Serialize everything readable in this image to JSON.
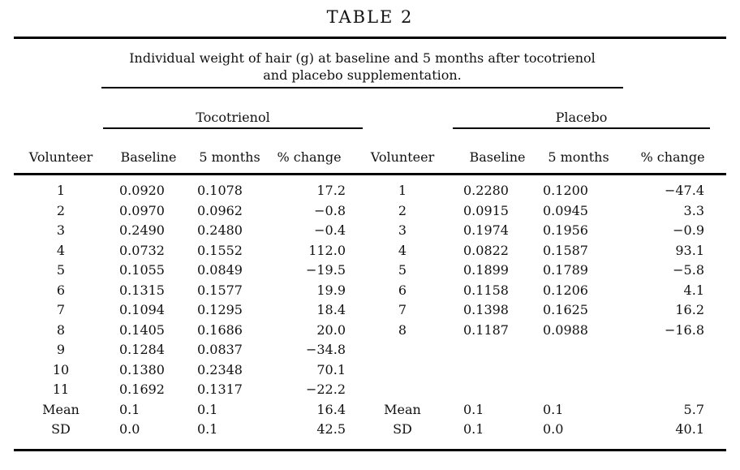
{
  "title": "TABLE 2",
  "caption": {
    "line1": "Individual weight of hair (g) at baseline and 5 months after tocotrienol",
    "line2": "and placebo supplementation."
  },
  "columns": [
    "Volunteer",
    "Baseline",
    "5 months",
    "% change",
    "Volunteer",
    "Baseline",
    "5 months",
    "% change"
  ],
  "chart_data": {
    "type": "table",
    "title": "TABLE 2",
    "caption": "Individual weight of hair (g) at baseline and 5 months after tocotrienol and placebo supplementation.",
    "groups": [
      {
        "name": "Tocotrienol",
        "columns": [
          "Volunteer",
          "Baseline",
          "5 months",
          "% change"
        ],
        "data_rows": [
          [
            "1",
            "0.0920",
            "0.1078",
            "17.2"
          ],
          [
            "2",
            "0.0970",
            "0.0962",
            "−0.8"
          ],
          [
            "3",
            "0.2490",
            "0.2480",
            "−0.4"
          ],
          [
            "4",
            "0.0732",
            "0.1552",
            "112.0"
          ],
          [
            "5",
            "0.1055",
            "0.0849",
            "−19.5"
          ],
          [
            "6",
            "0.1315",
            "0.1577",
            "19.9"
          ],
          [
            "7",
            "0.1094",
            "0.1295",
            "18.4"
          ],
          [
            "8",
            "0.1405",
            "0.1686",
            "20.0"
          ],
          [
            "9",
            "0.1284",
            "0.0837",
            "−34.8"
          ],
          [
            "10",
            "0.1380",
            "0.2348",
            "70.1"
          ],
          [
            "11",
            "0.1692",
            "0.1317",
            "−22.2"
          ]
        ],
        "summary_rows": [
          [
            "Mean",
            "0.1",
            "0.1",
            "16.4"
          ],
          [
            "SD",
            "0.0",
            "0.1",
            "42.5"
          ]
        ]
      },
      {
        "name": "Placebo",
        "columns": [
          "Volunteer",
          "Baseline",
          "5 months",
          "% change"
        ],
        "data_rows": [
          [
            "1",
            "0.2280",
            "0.1200",
            "−47.4"
          ],
          [
            "2",
            "0.0915",
            "0.0945",
            "3.3"
          ],
          [
            "3",
            "0.1974",
            "0.1956",
            "−0.9"
          ],
          [
            "4",
            "0.0822",
            "0.1587",
            "93.1"
          ],
          [
            "5",
            "0.1899",
            "0.1789",
            "−5.8"
          ],
          [
            "6",
            "0.1158",
            "0.1206",
            "4.1"
          ],
          [
            "7",
            "0.1398",
            "0.1625",
            "16.2"
          ],
          [
            "8",
            "0.1187",
            "0.0988",
            "−16.8"
          ]
        ],
        "summary_rows": [
          [
            "Mean",
            "0.1",
            "0.1",
            "5.7"
          ],
          [
            "SD",
            "0.1",
            "0.0",
            "40.1"
          ]
        ]
      }
    ]
  },
  "colors": {
    "text": "#111111",
    "rule": "#000000",
    "background": "#ffffff"
  }
}
